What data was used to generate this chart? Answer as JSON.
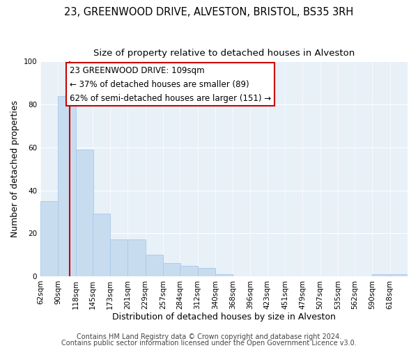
{
  "title1": "23, GREENWOOD DRIVE, ALVESTON, BRISTOL, BS35 3RH",
  "title2": "Size of property relative to detached houses in Alveston",
  "xlabel": "Distribution of detached houses by size in Alveston",
  "ylabel": "Number of detached properties",
  "annotation_line0": "23 GREENWOOD DRIVE: 109sqm",
  "annotation_line1": "← 37% of detached houses are smaller (89)",
  "annotation_line2": "62% of semi-detached houses are larger (151) →",
  "footer1": "Contains HM Land Registry data © Crown copyright and database right 2024.",
  "footer2": "Contains public sector information licensed under the Open Government Licence v3.0.",
  "bin_edges": [
    62,
    90,
    118,
    145,
    173,
    201,
    229,
    257,
    284,
    312,
    340,
    368,
    396,
    423,
    451,
    479,
    507,
    535,
    562,
    590,
    618
  ],
  "bar_heights": [
    35,
    84,
    59,
    29,
    17,
    17,
    10,
    6,
    5,
    4,
    1,
    0,
    0,
    0,
    0,
    0,
    0,
    0,
    0,
    1,
    1
  ],
  "bar_color": "#c8dcf0",
  "bar_edge_color": "#a8c8e8",
  "red_line_x": 109,
  "ylim": [
    0,
    100
  ],
  "yticks": [
    0,
    20,
    40,
    60,
    80,
    100
  ],
  "fig_bg_color": "#ffffff",
  "plot_bg_color": "#e8f0f8",
  "annotation_box_facecolor": "#ffffff",
  "annotation_border_color": "#cc0000",
  "title1_fontsize": 10.5,
  "title2_fontsize": 9.5,
  "axis_label_fontsize": 9,
  "tick_fontsize": 7.5,
  "annotation_fontsize": 8.5,
  "footer_fontsize": 7
}
